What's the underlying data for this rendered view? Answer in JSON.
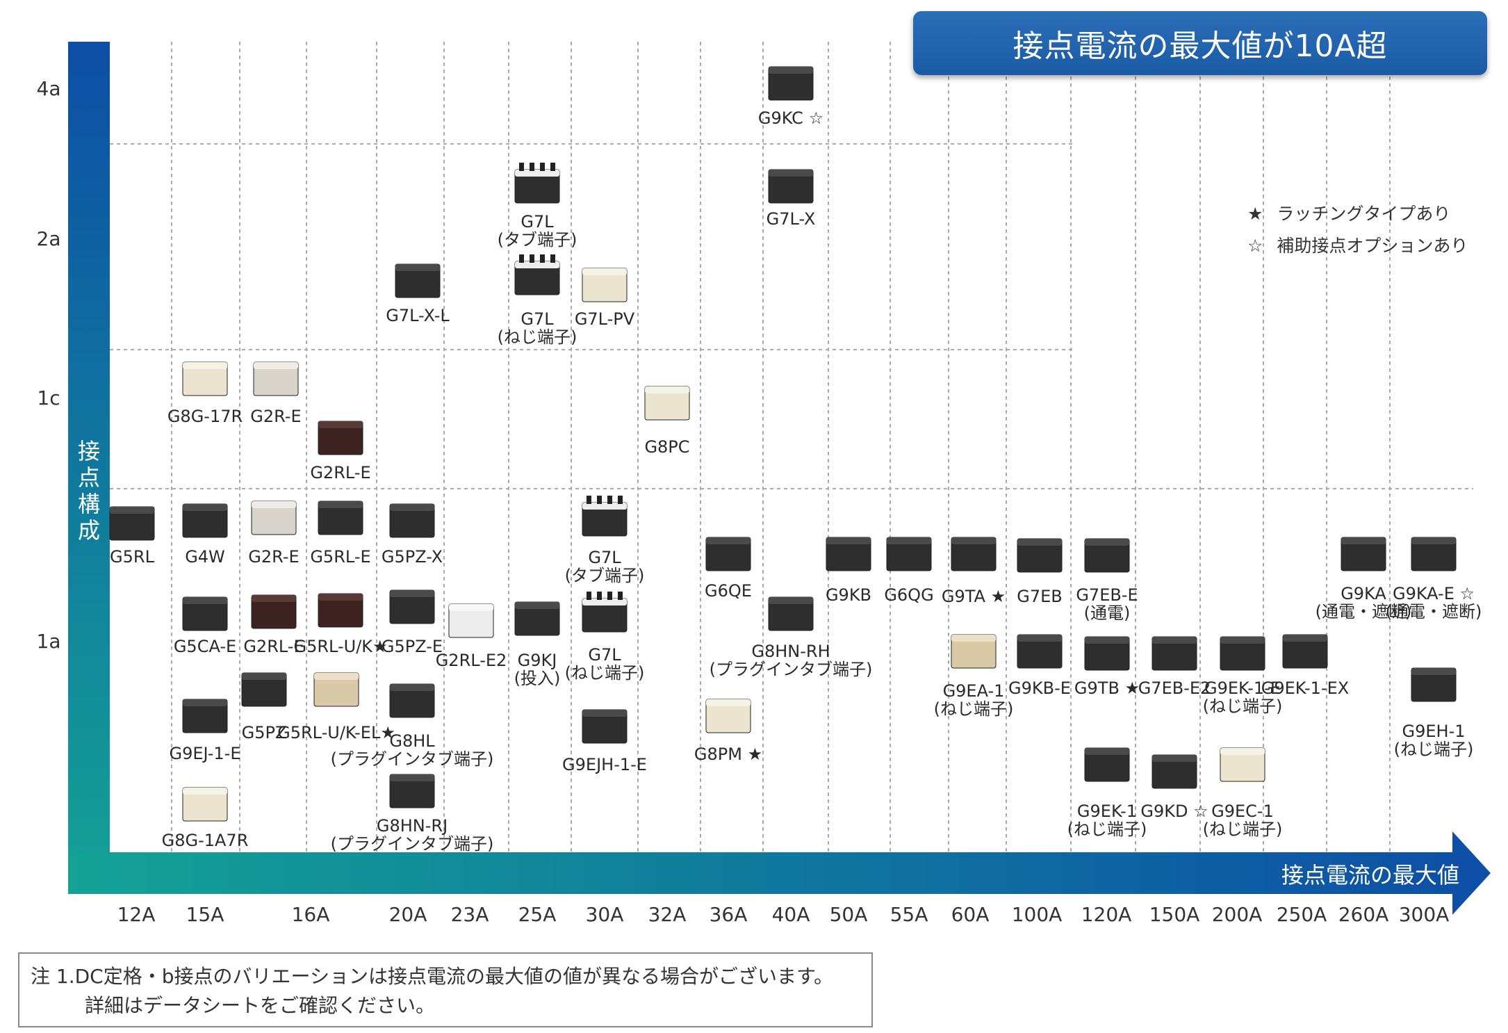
{
  "title": "接点電流の最大値が10A超",
  "x_axis_label": "接点電流の最大値",
  "y_axis_label": "接点構成",
  "x_ticks": [
    "12A",
    "15A",
    "16A",
    "20A",
    "23A",
    "25A",
    "30A",
    "32A",
    "36A",
    "40A",
    "50A",
    "55A",
    "60A",
    "100A",
    "120A",
    "150A",
    "200A",
    "250A",
    "260A",
    "300A"
  ],
  "y_ticks": [
    "4a",
    "2a",
    "1c",
    "1a"
  ],
  "legend": [
    {
      "symbol": "★",
      "text": "ラッチングタイプあり"
    },
    {
      "symbol": "☆",
      "text": "補助接点オプションあり"
    }
  ],
  "note_line1": "注 1.DC定格・b接点のバリエーションは接点電流の最大値の値が異なる場合がございます。",
  "note_line2": "詳細はデータシートをご確認ください。",
  "colors": {
    "title_bg": "#1f63ab",
    "axis_top": "#0d4ea6",
    "axis_bottom": "#14a295",
    "grid": "#aaaaaa"
  },
  "products": [
    {
      "label": [
        "G9KC ☆"
      ],
      "current": "40A",
      "contacts": "4a",
      "style": "black"
    },
    {
      "label": [
        "G7L",
        "(タブ端子)"
      ],
      "current": "25A",
      "contacts": "2a",
      "style": "black-tab"
    },
    {
      "label": [
        "G7L-X"
      ],
      "current": "40A",
      "contacts": "2a",
      "style": "black"
    },
    {
      "label": [
        "G7L-X-L"
      ],
      "current": "20A",
      "contacts": "2a",
      "style": "black"
    },
    {
      "label": [
        "G7L",
        "(ねじ端子)"
      ],
      "current": "25A",
      "contacts": "2a",
      "style": "black-tab"
    },
    {
      "label": [
        "G7L-PV"
      ],
      "current": "30A",
      "contacts": "2a",
      "style": "cream"
    },
    {
      "label": [
        "G8G-17R"
      ],
      "current": "15A",
      "contacts": "1c",
      "style": "cream"
    },
    {
      "label": [
        "G2R-E"
      ],
      "current": "16A",
      "contacts": "1c",
      "style": "clear"
    },
    {
      "label": [
        "G2RL-E"
      ],
      "current": "16A",
      "contacts": "1c",
      "style": "brown"
    },
    {
      "label": [
        "G8PC"
      ],
      "current": "32A",
      "contacts": "1c",
      "style": "cream"
    },
    {
      "label": [
        "G5RL"
      ],
      "current": "12A",
      "contacts": "1a",
      "style": "black"
    },
    {
      "label": [
        "G4W"
      ],
      "current": "15A",
      "contacts": "1a",
      "style": "black"
    },
    {
      "label": [
        "G2R-E"
      ],
      "current": "16A",
      "contacts": "1a",
      "style": "clear"
    },
    {
      "label": [
        "G5RL-E"
      ],
      "current": "16A",
      "contacts": "1a",
      "style": "black"
    },
    {
      "label": [
        "G5PZ-X"
      ],
      "current": "20A",
      "contacts": "1a",
      "style": "black"
    },
    {
      "label": [
        "G7L",
        "(タブ端子)"
      ],
      "current": "30A",
      "contacts": "1a",
      "style": "black-tab"
    },
    {
      "label": [
        "G6QE"
      ],
      "current": "36A",
      "contacts": "1a",
      "style": "black"
    },
    {
      "label": [
        "G9KB"
      ],
      "current": "50A",
      "contacts": "1a",
      "style": "black"
    },
    {
      "label": [
        "G6QG"
      ],
      "current": "55A",
      "contacts": "1a",
      "style": "black"
    },
    {
      "label": [
        "G9TA ★"
      ],
      "current": "60A",
      "contacts": "1a",
      "style": "black"
    },
    {
      "label": [
        "G7EB"
      ],
      "current": "100A",
      "contacts": "1a",
      "style": "black"
    },
    {
      "label": [
        "G7EB-E",
        "(通電)"
      ],
      "current": "120A",
      "contacts": "1a",
      "style": "black"
    },
    {
      "label": [
        "G9KA",
        "(通電・遮断)"
      ],
      "current": "260A",
      "contacts": "1a",
      "style": "black"
    },
    {
      "label": [
        "G9KA-E ☆",
        "(通電・遮断)"
      ],
      "current": "300A",
      "contacts": "1a",
      "style": "black"
    },
    {
      "label": [
        "G5CA-E"
      ],
      "current": "15A",
      "contacts": "1a",
      "style": "black"
    },
    {
      "label": [
        "G2RL-E"
      ],
      "current": "16A",
      "contacts": "1a",
      "style": "brown"
    },
    {
      "label": [
        "G5RL-U/K★"
      ],
      "current": "16A",
      "contacts": "1a",
      "style": "brown"
    },
    {
      "label": [
        "G5PZ-E"
      ],
      "current": "20A",
      "contacts": "1a",
      "style": "black"
    },
    {
      "label": [
        "G2RL-E2"
      ],
      "current": "23A",
      "contacts": "1a",
      "style": "white"
    },
    {
      "label": [
        "G9KJ",
        "(投入)"
      ],
      "current": "25A",
      "contacts": "1a",
      "style": "black"
    },
    {
      "label": [
        "G7L",
        "(ねじ端子)"
      ],
      "current": "30A",
      "contacts": "1a",
      "style": "black-tab"
    },
    {
      "label": [
        "G8HN-RH",
        "(プラグインタブ端子)"
      ],
      "current": "40A",
      "contacts": "1a",
      "style": "black"
    },
    {
      "label": [
        "G9EA-1",
        "(ねじ端子)"
      ],
      "current": "60A",
      "contacts": "1a",
      "style": "beige"
    },
    {
      "label": [
        "G9KB-E"
      ],
      "current": "100A",
      "contacts": "1a",
      "style": "black"
    },
    {
      "label": [
        "G9TB ★"
      ],
      "current": "120A",
      "contacts": "1a",
      "style": "black"
    },
    {
      "label": [
        "G7EB-E2"
      ],
      "current": "150A",
      "contacts": "1a",
      "style": "black"
    },
    {
      "label": [
        "G9EK-1-E",
        "(ねじ端子)"
      ],
      "current": "200A",
      "contacts": "1a",
      "style": "black"
    },
    {
      "label": [
        "G9EK-1-EX"
      ],
      "current": "250A",
      "contacts": "1a",
      "style": "black"
    },
    {
      "label": [
        "G9EJ-1-E"
      ],
      "current": "15A",
      "contacts": "1a",
      "style": "black"
    },
    {
      "label": [
        "G5PZ"
      ],
      "current": "16A",
      "contacts": "1a",
      "style": "black"
    },
    {
      "label": [
        "G5RL-U/K-EL★"
      ],
      "current": "16A",
      "contacts": "1a",
      "style": "beige"
    },
    {
      "label": [
        "G8HL",
        "(プラグインタブ端子)"
      ],
      "current": "20A",
      "contacts": "1a",
      "style": "black"
    },
    {
      "label": [
        "G9EJH-1-E"
      ],
      "current": "30A",
      "contacts": "1a",
      "style": "black"
    },
    {
      "label": [
        "G8PM ★"
      ],
      "current": "36A",
      "contacts": "1a",
      "style": "cream"
    },
    {
      "label": [
        "G9EH-1",
        "(ねじ端子)"
      ],
      "current": "300A",
      "contacts": "1a",
      "style": "black"
    },
    {
      "label": [
        "G8G-1A7R"
      ],
      "current": "15A",
      "contacts": "1a",
      "style": "cream"
    },
    {
      "label": [
        "G8HN-RJ",
        "(プラグインタブ端子)"
      ],
      "current": "20A",
      "contacts": "1a",
      "style": "black"
    },
    {
      "label": [
        "G9EK-1",
        "(ねじ端子)"
      ],
      "current": "120A",
      "contacts": "1a",
      "style": "black"
    },
    {
      "label": [
        "G9KD ☆"
      ],
      "current": "150A",
      "contacts": "1a",
      "style": "black"
    },
    {
      "label": [
        "G9EC-1",
        "(ねじ端子)"
      ],
      "current": "200A",
      "contacts": "1a",
      "style": "cream"
    }
  ]
}
